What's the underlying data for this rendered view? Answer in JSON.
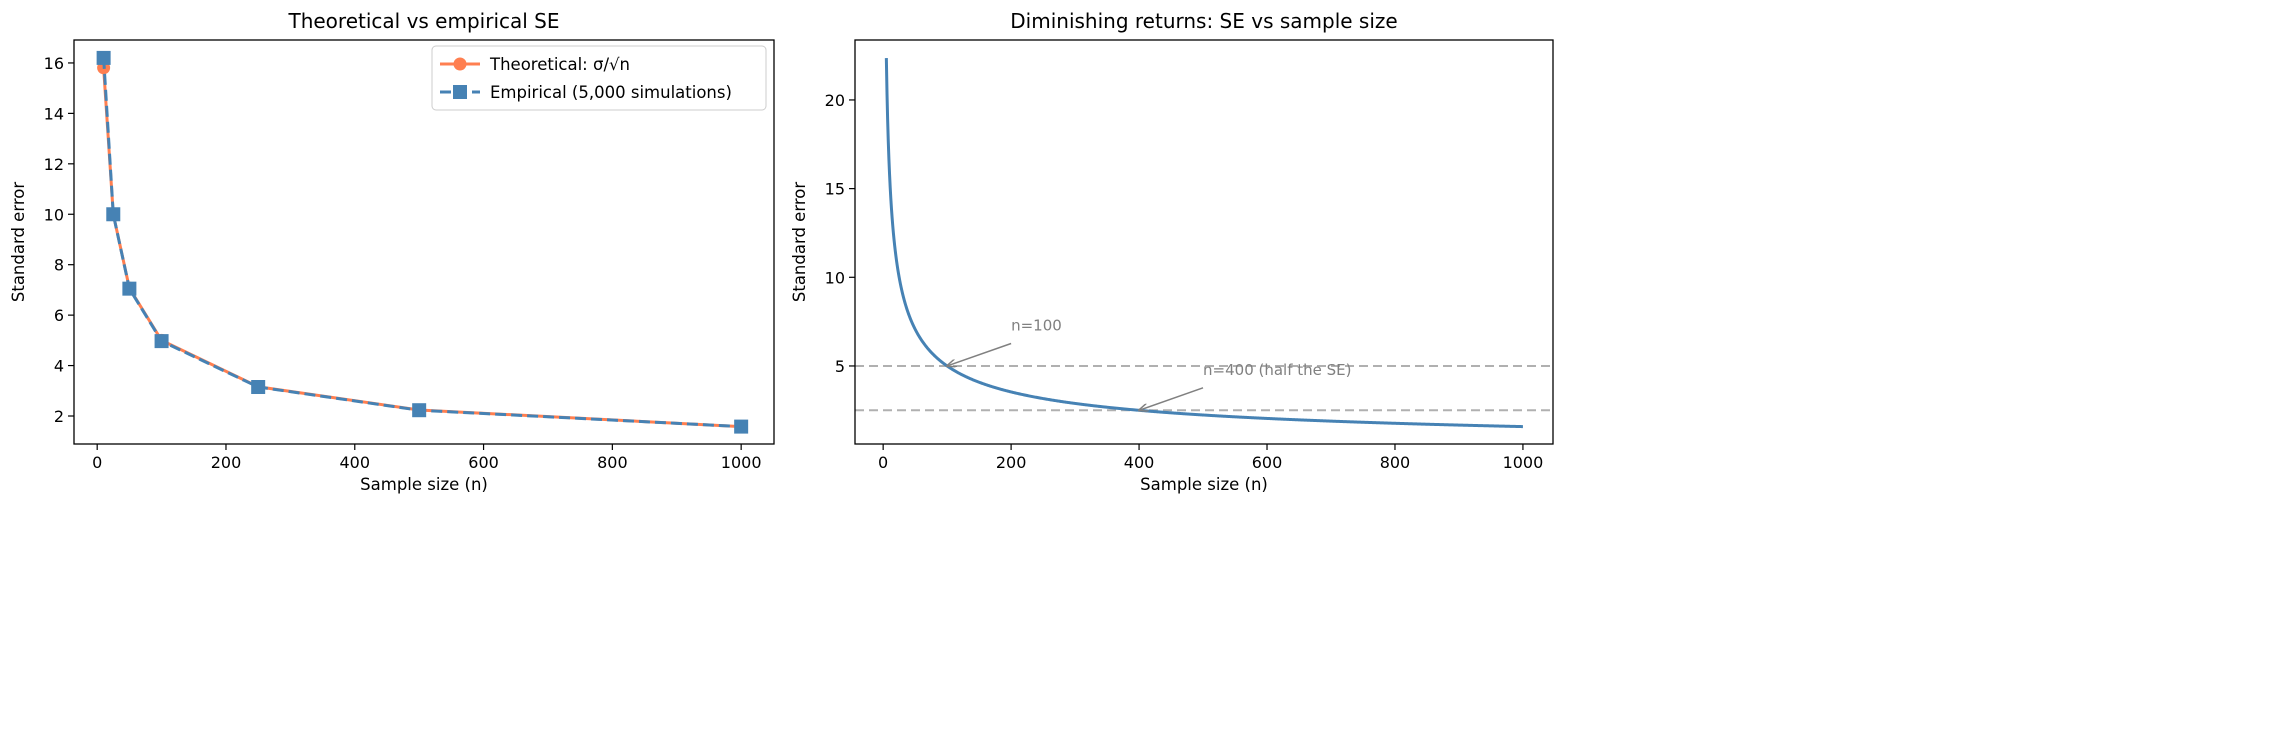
{
  "chart_data": [
    {
      "type": "line",
      "title": "Theoretical vs empirical SE",
      "xlabel": "Sample size (n)",
      "ylabel": "Standard error",
      "xlim": [
        -36,
        1051
      ],
      "ylim": [
        0.89,
        16.91
      ],
      "xticks": [
        0,
        200,
        400,
        600,
        800,
        1000
      ],
      "yticks": [
        2,
        4,
        6,
        8,
        10,
        12,
        14,
        16
      ],
      "grid": false,
      "legend_position": "top-right",
      "x": [
        10,
        25,
        50,
        100,
        250,
        500,
        1000
      ],
      "series": [
        {
          "name": "Theoretical: σ/√n",
          "color": "#FF7F50",
          "marker": "circle",
          "line": "solid",
          "values": [
            15.81,
            10.0,
            7.07,
            5.0,
            3.16,
            2.24,
            1.58
          ]
        },
        {
          "name": "Empirical (5,000 simulations)",
          "color": "#4682B4",
          "marker": "square",
          "line": "dashed",
          "values": [
            16.2,
            10.0,
            7.05,
            4.97,
            3.15,
            2.23,
            1.58
          ]
        }
      ]
    },
    {
      "type": "line",
      "title": "Diminishing returns: SE vs sample size",
      "xlabel": "Sample size (n)",
      "ylabel": "Standard error",
      "xlim": [
        -44,
        1047
      ],
      "ylim": [
        0.6,
        23.38
      ],
      "xticks": [
        0,
        200,
        400,
        600,
        800,
        1000
      ],
      "yticks": [
        5,
        10,
        15,
        20
      ],
      "grid": false,
      "curve": {
        "formula": "50/sqrt(n)",
        "n_min": 5,
        "n_max": 1000,
        "color": "#4682B4"
      },
      "hlines": [
        {
          "y": 5,
          "color": "#B0B0B0",
          "style": "dashed"
        },
        {
          "y": 2.5,
          "color": "#B0B0B0",
          "style": "dashed"
        }
      ],
      "annotations": [
        {
          "text": "n=100",
          "point": [
            100,
            5
          ],
          "text_at": [
            200,
            7
          ]
        },
        {
          "text": "n=400 (half the SE)",
          "point": [
            400,
            2.5
          ],
          "text_at": [
            500,
            4.5
          ]
        }
      ]
    }
  ]
}
